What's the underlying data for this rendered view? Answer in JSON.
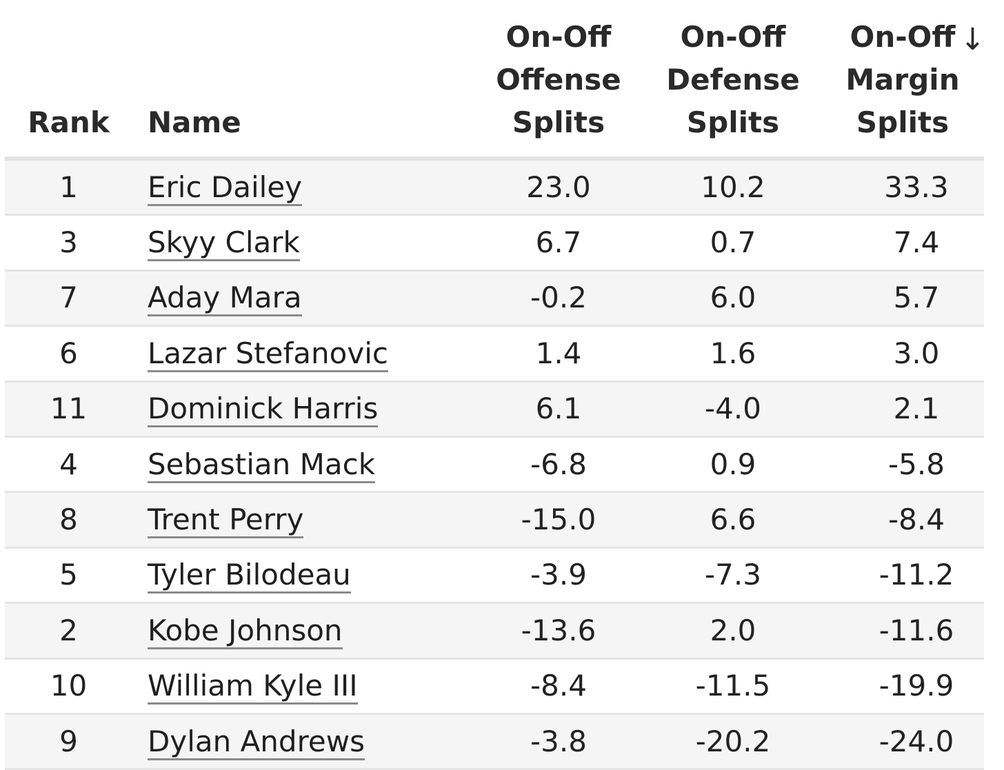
{
  "table": {
    "headers": {
      "rank": "Rank",
      "name": "Name",
      "offense": [
        "On-Off",
        "Offense",
        "Splits"
      ],
      "defense": [
        "On-Off",
        "Defense",
        "Splits"
      ],
      "margin": [
        "On-Off",
        "Margin",
        "Splits"
      ],
      "sort_indicator": "↓"
    },
    "rows": [
      {
        "rank": "1",
        "name": "Eric Dailey",
        "offense": "23.0",
        "defense": "10.2",
        "margin": "33.3"
      },
      {
        "rank": "3",
        "name": "Skyy Clark",
        "offense": "6.7",
        "defense": "0.7",
        "margin": "7.4"
      },
      {
        "rank": "7",
        "name": "Aday Mara",
        "offense": "-0.2",
        "defense": "6.0",
        "margin": "5.7"
      },
      {
        "rank": "6",
        "name": "Lazar Stefanovic",
        "offense": "1.4",
        "defense": "1.6",
        "margin": "3.0"
      },
      {
        "rank": "11",
        "name": "Dominick Harris",
        "offense": "6.1",
        "defense": "-4.0",
        "margin": "2.1"
      },
      {
        "rank": "4",
        "name": "Sebastian Mack",
        "offense": "-6.8",
        "defense": "0.9",
        "margin": "-5.8"
      },
      {
        "rank": "8",
        "name": "Trent Perry",
        "offense": "-15.0",
        "defense": "6.6",
        "margin": "-8.4"
      },
      {
        "rank": "5",
        "name": "Tyler Bilodeau",
        "offense": "-3.9",
        "defense": "-7.3",
        "margin": "-11.2"
      },
      {
        "rank": "2",
        "name": "Kobe Johnson",
        "offense": "-13.6",
        "defense": "2.0",
        "margin": "-11.6"
      },
      {
        "rank": "10",
        "name": "William Kyle III",
        "offense": "-8.4",
        "defense": "-11.5",
        "margin": "-19.9"
      },
      {
        "rank": "9",
        "name": "Dylan Andrews",
        "offense": "-3.8",
        "defense": "-20.2",
        "margin": "-24.0"
      }
    ]
  },
  "colors": {
    "stripe": "#f5f5f5",
    "divider": "#e4e4e4",
    "link_underline": "#8a8a8a",
    "text": "#1f1f1f"
  }
}
